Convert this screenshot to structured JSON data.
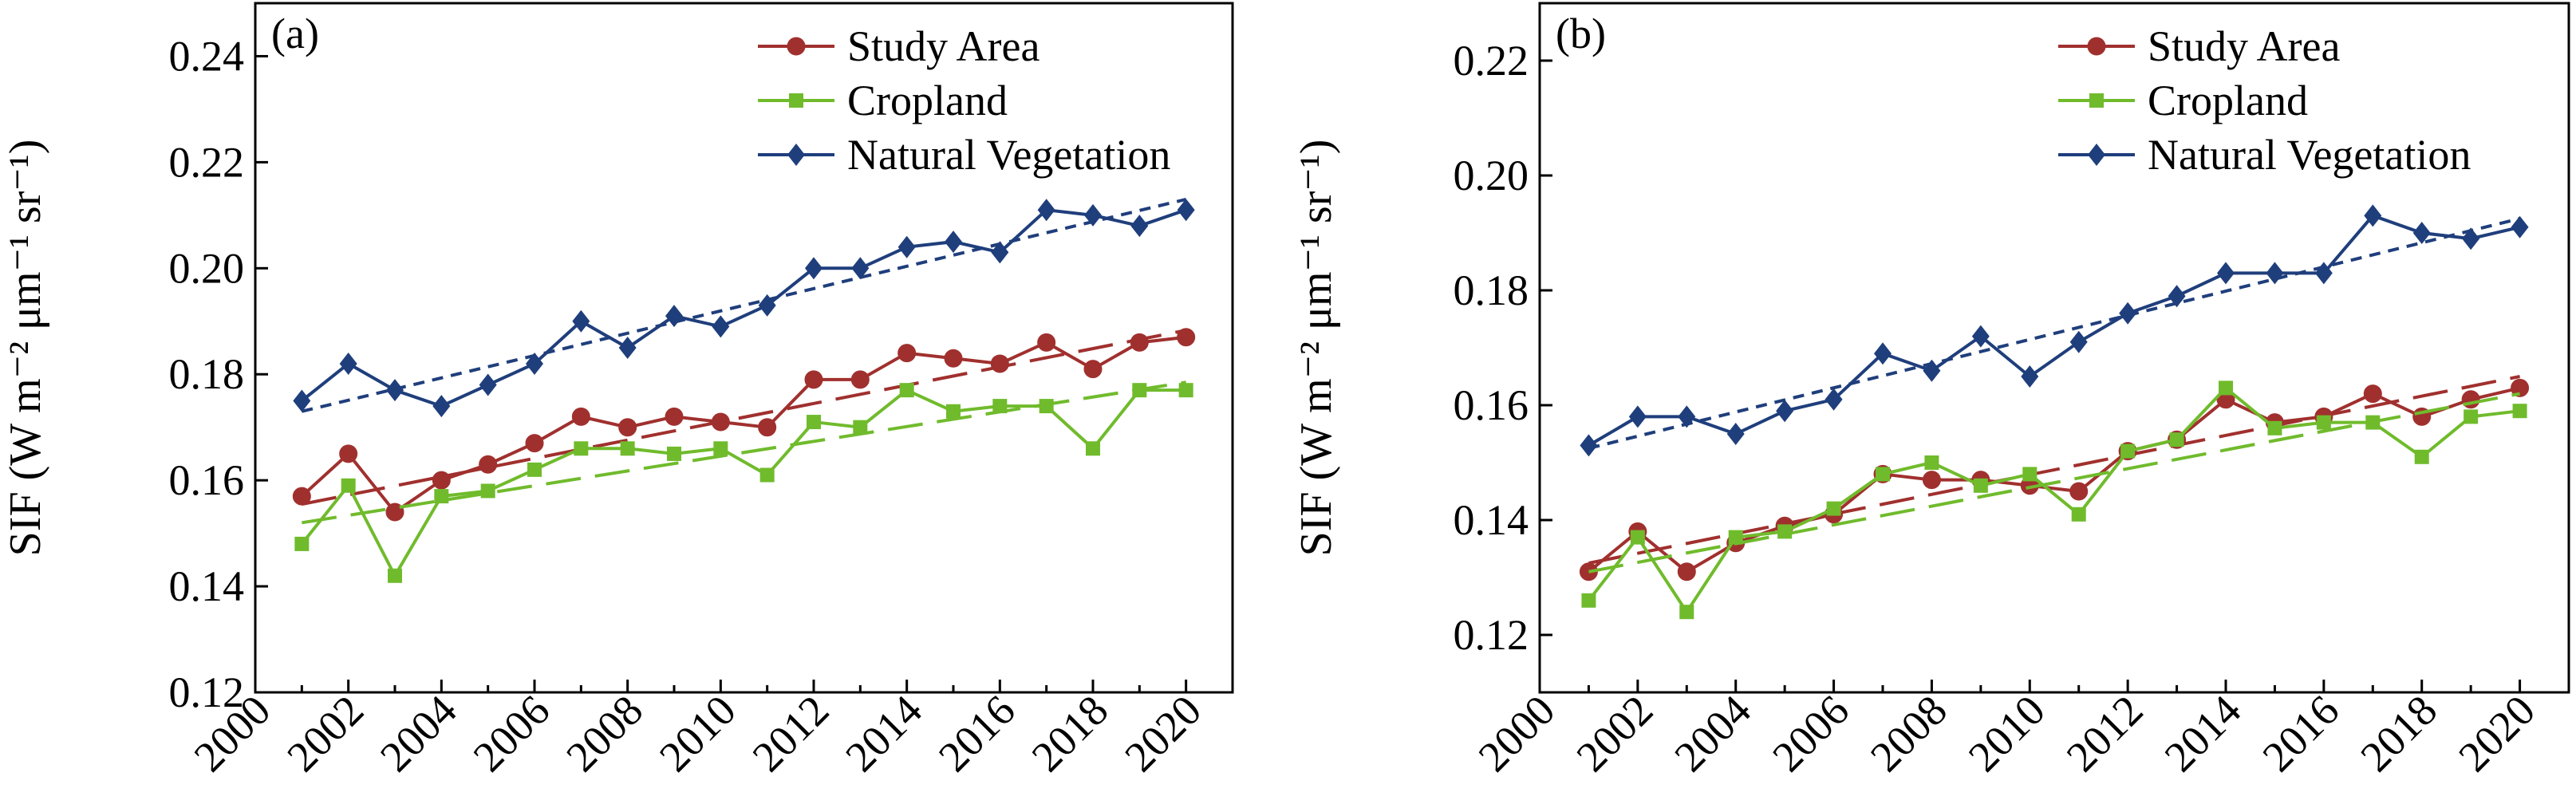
{
  "chart_data": [
    {
      "type": "line",
      "panel_label": "(a)",
      "ylabel": "SIF (W m⁻² μm⁻¹ sr⁻¹)",
      "xlabel": "",
      "xlim": [
        2000,
        2021
      ],
      "ylim": [
        0.12,
        0.25
      ],
      "xticks": [
        "2000",
        "2002",
        "2004",
        "2006",
        "2008",
        "2010",
        "2012",
        "2014",
        "2016",
        "2018",
        "2020"
      ],
      "yticks": [
        "0.12",
        "0.14",
        "0.16",
        "0.18",
        "0.20",
        "0.22",
        "0.24"
      ],
      "legend_position": "top-right",
      "grid": false,
      "x": [
        2001,
        2002,
        2003,
        2004,
        2005,
        2006,
        2007,
        2008,
        2009,
        2010,
        2011,
        2012,
        2013,
        2014,
        2015,
        2016,
        2017,
        2018,
        2019,
        2020
      ],
      "series": [
        {
          "name": "Study Area",
          "color": "#A0302E",
          "marker": "circle",
          "trend_style": "long-dash",
          "values": [
            0.157,
            0.165,
            0.154,
            0.16,
            0.163,
            0.167,
            0.172,
            0.17,
            0.172,
            0.171,
            0.17,
            0.179,
            0.179,
            0.184,
            0.183,
            0.182,
            0.186,
            0.181,
            0.186,
            0.187
          ],
          "trend": [
            0.1555,
            0.1883
          ]
        },
        {
          "name": "Cropland",
          "color": "#70BB2C",
          "marker": "square",
          "trend_style": "long-dash",
          "values": [
            0.148,
            0.159,
            0.142,
            0.157,
            0.158,
            0.162,
            0.166,
            0.166,
            0.165,
            0.166,
            0.161,
            0.171,
            0.17,
            0.177,
            0.173,
            0.174,
            0.174,
            0.166,
            0.177,
            0.177
          ],
          "trend": [
            0.152,
            0.1785
          ]
        },
        {
          "name": "Natural Vegetation",
          "color": "#1F3E7C",
          "marker": "diamond",
          "trend_style": "short-dash",
          "values": [
            0.175,
            0.182,
            0.177,
            0.174,
            0.178,
            0.182,
            0.19,
            0.185,
            0.191,
            0.189,
            0.193,
            0.2,
            0.2,
            0.204,
            0.205,
            0.203,
            0.211,
            0.21,
            0.208,
            0.211
          ],
          "trend": [
            0.173,
            0.213
          ]
        }
      ]
    },
    {
      "type": "line",
      "panel_label": "(b)",
      "ylabel": "SIF (W m⁻² μm⁻¹ sr⁻¹)",
      "xlabel": "",
      "xlim": [
        2000,
        2021
      ],
      "ylim": [
        0.11,
        0.23
      ],
      "xticks": [
        "2000",
        "2002",
        "2004",
        "2006",
        "2008",
        "2010",
        "2012",
        "2014",
        "2016",
        "2018",
        "2020"
      ],
      "yticks": [
        "0.12",
        "0.14",
        "0.16",
        "0.18",
        "0.20",
        "0.22"
      ],
      "legend_position": "top-right",
      "grid": false,
      "x": [
        2001,
        2002,
        2003,
        2004,
        2005,
        2006,
        2007,
        2008,
        2009,
        2010,
        2011,
        2012,
        2013,
        2014,
        2015,
        2016,
        2017,
        2018,
        2019,
        2020
      ],
      "series": [
        {
          "name": "Study Area",
          "color": "#A0302E",
          "marker": "circle",
          "trend_style": "long-dash",
          "values": [
            0.131,
            0.138,
            0.131,
            0.136,
            0.139,
            0.141,
            0.148,
            0.147,
            0.147,
            0.146,
            0.145,
            0.152,
            0.154,
            0.161,
            0.157,
            0.158,
            0.162,
            0.158,
            0.161,
            0.163
          ],
          "trend": [
            0.1325,
            0.165
          ]
        },
        {
          "name": "Cropland",
          "color": "#70BB2C",
          "marker": "square",
          "trend_style": "long-dash",
          "values": [
            0.126,
            0.137,
            0.124,
            0.137,
            0.138,
            0.142,
            0.148,
            0.15,
            0.146,
            0.148,
            0.141,
            0.152,
            0.154,
            0.163,
            0.156,
            0.157,
            0.157,
            0.151,
            0.158,
            0.159
          ],
          "trend": [
            0.131,
            0.162
          ]
        },
        {
          "name": "Natural Vegetation",
          "color": "#1F3E7C",
          "marker": "diamond",
          "trend_style": "short-dash",
          "values": [
            0.153,
            0.158,
            0.158,
            0.155,
            0.159,
            0.161,
            0.169,
            0.166,
            0.172,
            0.165,
            0.171,
            0.176,
            0.179,
            0.183,
            0.183,
            0.183,
            0.193,
            0.19,
            0.189,
            0.191
          ],
          "trend": [
            0.1525,
            0.1925
          ]
        }
      ]
    }
  ]
}
